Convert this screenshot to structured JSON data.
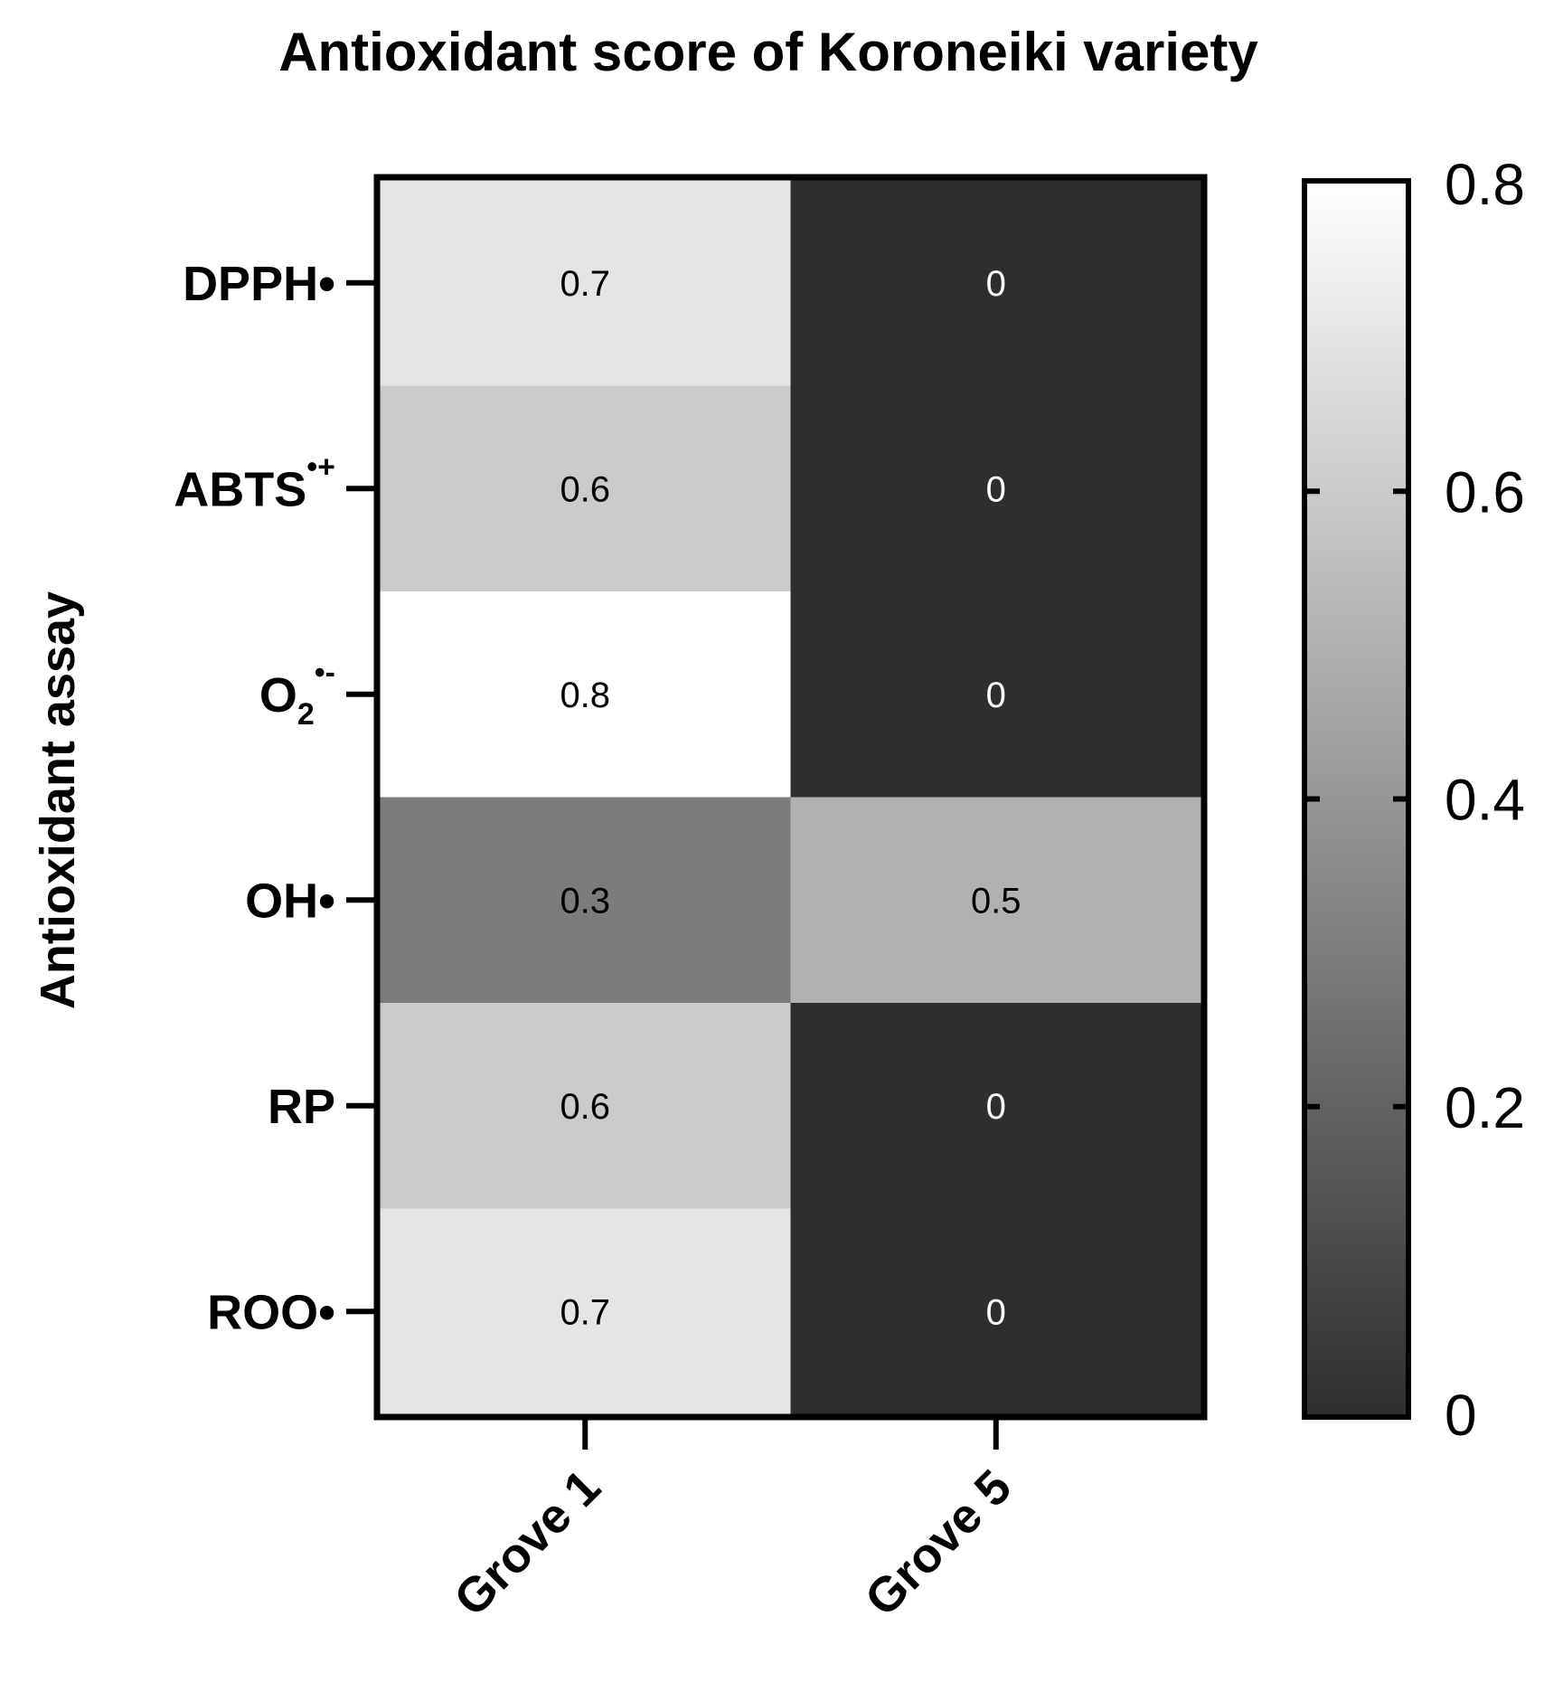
{
  "chart_data": {
    "type": "heatmap",
    "title": "Antioxidant score of Koroneiki variety",
    "ylabel": "Antioxidant assay",
    "xlabel": "",
    "rows": [
      {
        "base": "DPPH•",
        "sub": "",
        "sup": ""
      },
      {
        "base": "ABTS",
        "sub": "",
        "sup": "•+"
      },
      {
        "base": "O",
        "sub": "2",
        "sup": "•-"
      },
      {
        "base": "OH•",
        "sub": "",
        "sup": ""
      },
      {
        "base": "RP",
        "sub": "",
        "sup": ""
      },
      {
        "base": "ROO•",
        "sub": "",
        "sup": ""
      }
    ],
    "columns": [
      "Grove 1",
      "Grove 5"
    ],
    "values": [
      [
        0.7,
        0
      ],
      [
        0.6,
        0
      ],
      [
        0.8,
        0
      ],
      [
        0.3,
        0.5
      ],
      [
        0.6,
        0
      ],
      [
        0.7,
        0
      ]
    ],
    "value_labels": [
      [
        "0.7",
        "0"
      ],
      [
        "0.6",
        "0"
      ],
      [
        "0.8",
        "0"
      ],
      [
        "0.3",
        "0.5"
      ],
      [
        "0.6",
        "0"
      ],
      [
        "0.7",
        "0"
      ]
    ],
    "colorbar": {
      "range": [
        0,
        0.8
      ],
      "ticks": [
        0,
        0.2,
        0.4,
        0.6,
        0.8
      ],
      "tick_labels": [
        "0",
        "0.2",
        "0.4",
        "0.6",
        "0.8"
      ],
      "color_low": "#2e2e2e",
      "color_high": "#ffffff"
    }
  }
}
